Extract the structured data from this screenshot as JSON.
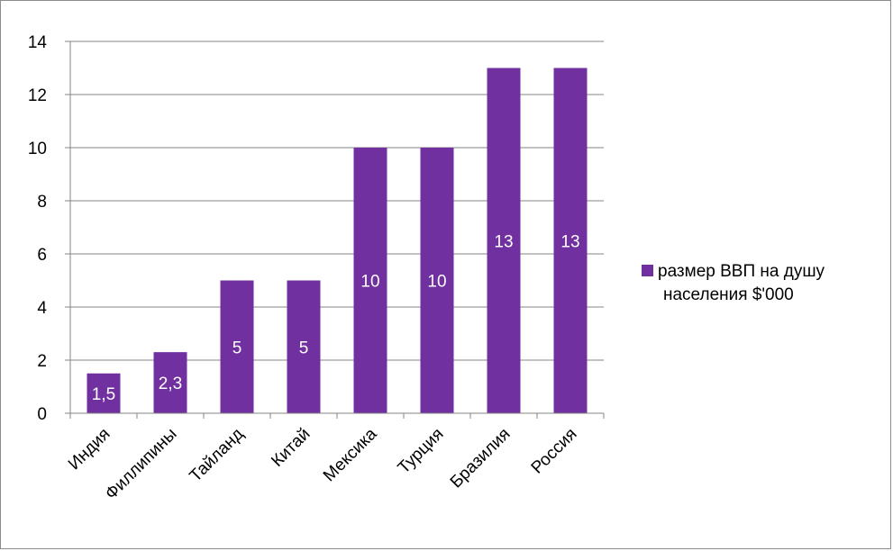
{
  "chart_data": {
    "type": "bar",
    "categories": [
      "Индия",
      "Филлипины",
      "Тайланд",
      "Китай",
      "Мексика",
      "Турция",
      "Бразилия",
      "Россия"
    ],
    "series": [
      {
        "name": "размер ВВП на душу населения $'000",
        "values": [
          1.5,
          2.3,
          5,
          5,
          10,
          10,
          13,
          13
        ],
        "data_labels": [
          "1,5",
          "2,3",
          "5",
          "5",
          "10",
          "10",
          "13",
          "13"
        ]
      }
    ],
    "ylim": [
      0,
      14
    ],
    "yticks": [
      "0",
      "2",
      "4",
      "6",
      "8",
      "10",
      "12",
      "14"
    ],
    "grid": true,
    "legend_position": "right",
    "colors": {
      "bar": "#7030a0",
      "grid": "#868686",
      "frame": "#8c8c8c"
    }
  },
  "legend": {
    "line1": "размер ВВП на душу",
    "line2": "населения $'000"
  }
}
